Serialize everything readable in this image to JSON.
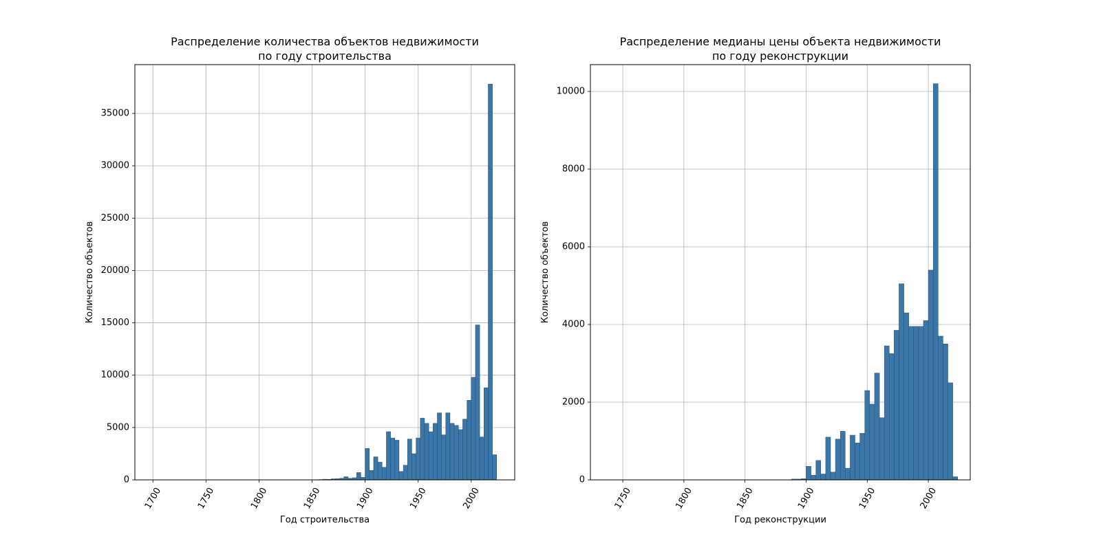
{
  "chart_data": [
    {
      "type": "histogram",
      "title": [
        "Распределение количества объектов недвижимости",
        "по году строительства"
      ],
      "x_label": "Год строительства",
      "y_label": "Количество объектов",
      "color": "#3a76a8",
      "grid": true,
      "xlim": [
        1683,
        2041
      ],
      "ylim": [
        0,
        39660
      ],
      "xticks": [
        1700,
        1750,
        1800,
        1850,
        1900,
        1950,
        2000
      ],
      "yticks": [
        0,
        5000,
        10000,
        15000,
        20000,
        25000,
        30000,
        35000
      ],
      "bins": [
        1700,
        1704,
        1708,
        1712,
        1716,
        1720,
        1724,
        1728,
        1732,
        1736,
        1740,
        1744,
        1748,
        1752,
        1756,
        1760,
        1764,
        1768,
        1772,
        1776,
        1780,
        1784,
        1788,
        1792,
        1796,
        1800,
        1804,
        1808,
        1812,
        1816,
        1820,
        1824,
        1828,
        1832,
        1836,
        1840,
        1844,
        1848,
        1852,
        1856,
        1860,
        1864,
        1868,
        1872,
        1876,
        1880,
        1884,
        1888,
        1892,
        1896,
        1900,
        1904,
        1908,
        1912,
        1916,
        1920,
        1924,
        1928,
        1932,
        1936,
        1940,
        1944,
        1948,
        1952,
        1956,
        1960,
        1964,
        1968,
        1972,
        1976,
        1980,
        1984,
        1988,
        1992,
        1996,
        2000,
        2004,
        2008,
        2012,
        2016,
        2020,
        2024
      ],
      "values": [
        0,
        0,
        0,
        0,
        0,
        0,
        0,
        0,
        0,
        0,
        0,
        0,
        0,
        0,
        0,
        0,
        0,
        0,
        0,
        0,
        0,
        0,
        0,
        0,
        0,
        0,
        0,
        0,
        0,
        0,
        0,
        0,
        0,
        0,
        0,
        0,
        0,
        0,
        20,
        30,
        60,
        50,
        100,
        120,
        150,
        300,
        150,
        200,
        700,
        250,
        3000,
        900,
        2200,
        1700,
        1200,
        4600,
        4000,
        3800,
        800,
        1400,
        3900,
        2500,
        4000,
        5900,
        5400,
        4600,
        5400,
        6400,
        4300,
        6400,
        5400,
        5200,
        4800,
        5800,
        7600,
        9800,
        14800,
        4100,
        8800,
        37800,
        2400
      ]
    },
    {
      "type": "histogram",
      "title": [
        "Распределение медианы цены объекта недвижимости",
        "по году реконструкции"
      ],
      "x_label": "Год реконструкции",
      "y_label": "Количество объектов",
      "color": "#3a76a8",
      "grid": true,
      "xlim": [
        1723.5,
        2034.3
      ],
      "ylim": [
        0,
        10690
      ],
      "xticks": [
        1750,
        1800,
        1850,
        1900,
        1950,
        2000
      ],
      "yticks": [
        0,
        2000,
        4000,
        6000,
        8000,
        10000
      ],
      "bins": [
        1740,
        1744,
        1748,
        1752,
        1756,
        1760,
        1764,
        1768,
        1772,
        1776,
        1780,
        1784,
        1788,
        1792,
        1796,
        1800,
        1804,
        1808,
        1812,
        1816,
        1820,
        1824,
        1828,
        1832,
        1836,
        1840,
        1844,
        1848,
        1852,
        1856,
        1860,
        1864,
        1868,
        1872,
        1876,
        1880,
        1884,
        1888,
        1892,
        1896,
        1900,
        1904,
        1908,
        1912,
        1916,
        1920,
        1924,
        1928,
        1932,
        1936,
        1940,
        1944,
        1948,
        1952,
        1956,
        1960,
        1964,
        1968,
        1972,
        1976,
        1980,
        1984,
        1988,
        1992,
        1996,
        2000,
        2004,
        2008,
        2012,
        2016,
        2020,
        2024
      ],
      "values": [
        0,
        0,
        0,
        0,
        0,
        0,
        0,
        0,
        0,
        0,
        0,
        0,
        0,
        0,
        0,
        0,
        0,
        0,
        0,
        0,
        0,
        0,
        0,
        0,
        0,
        0,
        0,
        0,
        0,
        0,
        0,
        0,
        0,
        0,
        0,
        0,
        0,
        20,
        20,
        30,
        350,
        120,
        500,
        150,
        1100,
        200,
        1050,
        1250,
        300,
        1150,
        950,
        1200,
        2300,
        1950,
        2750,
        1600,
        3450,
        3250,
        3850,
        5050,
        4300,
        3950,
        3950,
        3950,
        4100,
        5400,
        10200,
        3700,
        3500,
        2500,
        80
      ]
    }
  ]
}
